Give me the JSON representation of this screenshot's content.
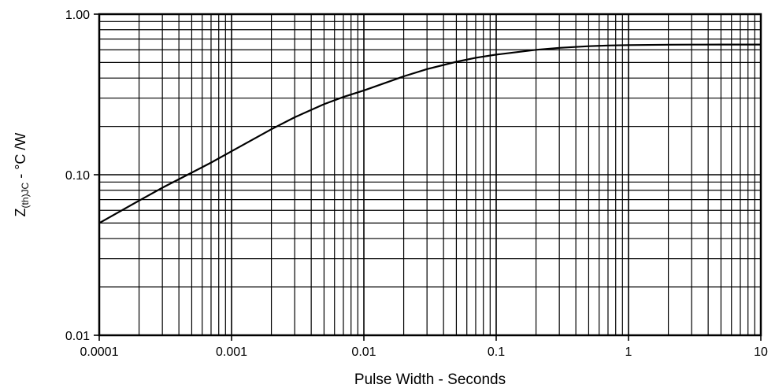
{
  "chart_data": {
    "type": "line",
    "title": "",
    "xlabel": "Pulse Width - Seconds",
    "ylabel": {
      "main": "Z",
      "subscript": "(th)JC",
      "suffix": " - °C /W"
    },
    "x_scale": "log",
    "y_scale": "log",
    "xlim": [
      0.0001,
      10
    ],
    "ylim": [
      0.01,
      1.0
    ],
    "grid": true,
    "x_ticks": [
      {
        "value": 0.0001,
        "label": "0.0001"
      },
      {
        "value": 0.001,
        "label": "0.001"
      },
      {
        "value": 0.01,
        "label": "0.01"
      },
      {
        "value": 0.1,
        "label": "0.1"
      },
      {
        "value": 1,
        "label": "1"
      },
      {
        "value": 10,
        "label": "10"
      }
    ],
    "y_ticks": [
      {
        "value": 0.01,
        "label": "0.01"
      },
      {
        "value": 0.1,
        "label": "0.10"
      },
      {
        "value": 1.0,
        "label": "1.00"
      }
    ],
    "series": [
      {
        "color": "#000000",
        "x": [
          0.0001,
          0.0002,
          0.0003,
          0.0005,
          0.0007,
          0.001,
          0.002,
          0.003,
          0.005,
          0.007,
          0.01,
          0.02,
          0.03,
          0.05,
          0.07,
          0.1,
          0.2,
          0.3,
          0.5,
          0.7,
          1,
          2,
          3,
          5,
          10
        ],
        "y": [
          0.05,
          0.069,
          0.083,
          0.103,
          0.119,
          0.14,
          0.192,
          0.228,
          0.275,
          0.305,
          0.335,
          0.41,
          0.455,
          0.505,
          0.535,
          0.56,
          0.6,
          0.617,
          0.632,
          0.638,
          0.642,
          0.645,
          0.646,
          0.647,
          0.647
        ]
      }
    ]
  }
}
